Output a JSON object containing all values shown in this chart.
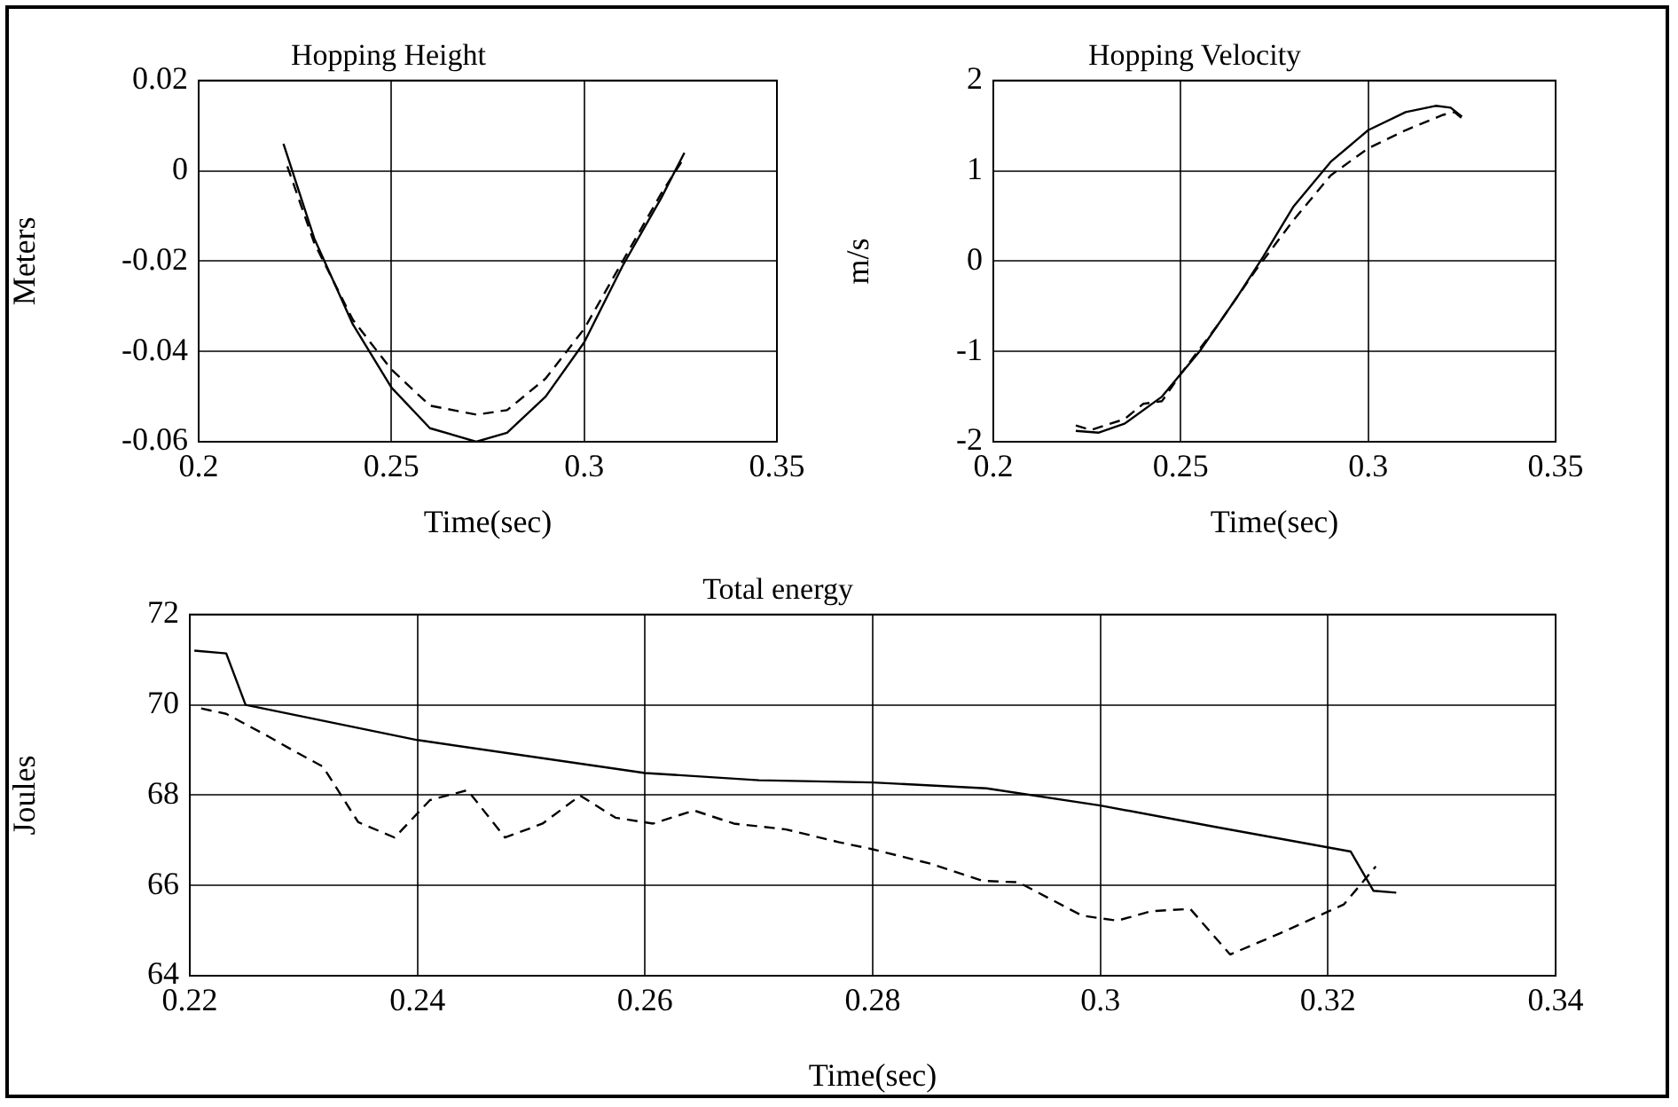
{
  "chart_data": [
    {
      "type": "line",
      "title": "Hopping Height",
      "xlabel": "Time(sec)",
      "ylabel": "Meters",
      "xlim": [
        0.2,
        0.35
      ],
      "xticks": [
        0.2,
        0.25,
        0.3,
        0.35
      ],
      "ylim": [
        -0.06,
        0.02
      ],
      "yticks": [
        -0.06,
        -0.04,
        -0.02,
        0,
        0.02
      ],
      "grid": true,
      "series": [
        {
          "color": "#000000",
          "line_style": "solid",
          "x": [
            0.222,
            0.23,
            0.24,
            0.25,
            0.26,
            0.272,
            0.28,
            0.29,
            0.3,
            0.31,
            0.32,
            0.326
          ],
          "values": [
            0.006,
            -0.015,
            -0.034,
            -0.048,
            -0.057,
            -0.06,
            -0.058,
            -0.05,
            -0.038,
            -0.021,
            -0.006,
            0.004
          ]
        },
        {
          "color": "#000000",
          "line_style": "dashed",
          "x": [
            0.223,
            0.23,
            0.24,
            0.25,
            0.26,
            0.272,
            0.28,
            0.29,
            0.3,
            0.31,
            0.32,
            0.326
          ],
          "values": [
            0.001,
            -0.016,
            -0.033,
            -0.044,
            -0.052,
            -0.054,
            -0.053,
            -0.046,
            -0.035,
            -0.02,
            -0.005,
            0.003
          ]
        }
      ]
    },
    {
      "type": "line",
      "title": "Hopping Velocity",
      "xlabel": "Time(sec)",
      "ylabel": "m/s",
      "xlim": [
        0.2,
        0.35
      ],
      "xticks": [
        0.2,
        0.25,
        0.3,
        0.35
      ],
      "ylim": [
        -2,
        2
      ],
      "yticks": [
        -2,
        -1,
        0,
        1,
        2
      ],
      "grid": true,
      "series": [
        {
          "color": "#000000",
          "line_style": "solid",
          "x": [
            0.222,
            0.228,
            0.235,
            0.245,
            0.255,
            0.265,
            0.272,
            0.28,
            0.29,
            0.3,
            0.31,
            0.318,
            0.322,
            0.325
          ],
          "values": [
            -1.88,
            -1.9,
            -1.8,
            -1.5,
            -1.0,
            -0.4,
            0.05,
            0.6,
            1.1,
            1.45,
            1.65,
            1.72,
            1.7,
            1.6
          ]
        },
        {
          "color": "#000000",
          "line_style": "dashed",
          "x": [
            0.222,
            0.226,
            0.235,
            0.24,
            0.245,
            0.25,
            0.26,
            0.27,
            0.28,
            0.29,
            0.3,
            0.31,
            0.32,
            0.323,
            0.326
          ],
          "values": [
            -1.82,
            -1.87,
            -1.75,
            -1.58,
            -1.55,
            -1.25,
            -0.7,
            -0.1,
            0.45,
            0.95,
            1.25,
            1.45,
            1.62,
            1.65,
            1.55
          ]
        }
      ]
    },
    {
      "type": "line",
      "title": "Total energy",
      "xlabel": "Time(sec)",
      "ylabel": "Joules",
      "xlim": [
        0.22,
        0.34
      ],
      "xticks": [
        0.22,
        0.24,
        0.26,
        0.28,
        0.3,
        0.32,
        0.34
      ],
      "ylim": [
        64,
        72
      ],
      "yticks": [
        64,
        66,
        68,
        70,
        72
      ],
      "grid": true,
      "series": [
        {
          "color": "#000000",
          "line_style": "solid",
          "x": [
            0.2204,
            0.2232,
            0.2249,
            0.24,
            0.26,
            0.27,
            0.28,
            0.29,
            0.3,
            0.31,
            0.322,
            0.324,
            0.326
          ],
          "values": [
            71.2,
            71.14,
            70.0,
            69.22,
            68.49,
            68.33,
            68.28,
            68.15,
            67.77,
            67.3,
            66.75,
            65.88,
            65.84
          ]
        },
        {
          "color": "#000000",
          "line_style": "dashed",
          "x": [
            0.221,
            0.2232,
            0.2269,
            0.229,
            0.2317,
            0.2348,
            0.238,
            0.2411,
            0.2444,
            0.2477,
            0.251,
            0.2543,
            0.2574,
            0.2607,
            0.2643,
            0.2678,
            0.2724,
            0.277,
            0.28,
            0.2851,
            0.2897,
            0.2928,
            0.2984,
            0.3015,
            0.3045,
            0.3079,
            0.3114,
            0.3158,
            0.3214,
            0.3242
          ],
          "values": [
            69.92,
            69.8,
            69.3,
            69.0,
            68.63,
            67.4,
            67.06,
            67.89,
            68.11,
            67.06,
            67.37,
            67.99,
            67.5,
            67.37,
            67.66,
            67.37,
            67.24,
            66.96,
            66.8,
            66.48,
            66.1,
            66.07,
            65.33,
            65.22,
            65.43,
            65.48,
            64.47,
            64.94,
            65.58,
            66.42
          ]
        }
      ]
    }
  ]
}
